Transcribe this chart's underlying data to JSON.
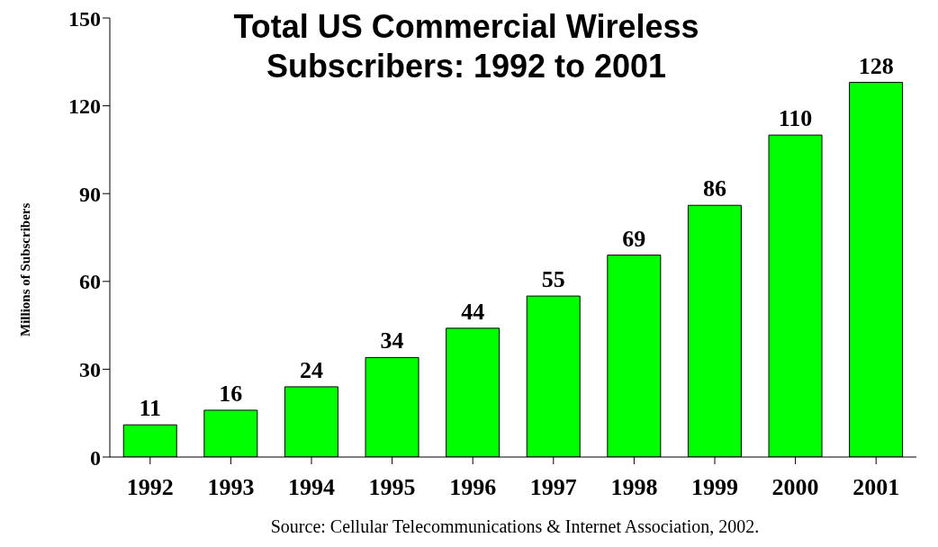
{
  "chart_data": {
    "type": "bar",
    "title": "Total US Commercial Wireless Subscribers: 1992 to 2001",
    "ylabel": "Millions of Subscribers",
    "categories": [
      "1992",
      "1993",
      "1994",
      "1995",
      "1996",
      "1997",
      "1998",
      "1999",
      "2000",
      "2001"
    ],
    "values": [
      11,
      16,
      24,
      34,
      44,
      55,
      69,
      86,
      110,
      128
    ],
    "color": "#00ff00",
    "ylim": [
      0,
      150
    ],
    "yticks": [
      0,
      30,
      60,
      90,
      120,
      150
    ],
    "data_labels": true,
    "annotations": [
      "Source: Cellular Telecommunications & Internet Association, 2002."
    ]
  }
}
